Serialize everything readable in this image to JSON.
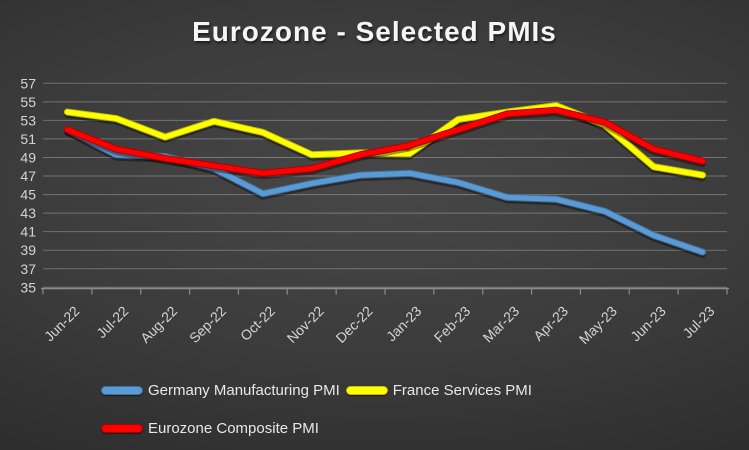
{
  "chart_data": {
    "type": "line",
    "title": "Eurozone - Selected PMIs",
    "categories": [
      "Jun-22",
      "Jul-22",
      "Aug-22",
      "Sep-22",
      "Oct-22",
      "Nov-22",
      "Dec-22",
      "Jan-23",
      "Feb-23",
      "Mar-23",
      "Apr-23",
      "May-23",
      "Jun-23",
      "Jul-23"
    ],
    "series": [
      {
        "name": "Germany Manufacturing PMI",
        "color": "#5B9BD5",
        "edge_color": "#41719C",
        "values": [
          52.0,
          49.3,
          49.1,
          47.8,
          45.1,
          46.2,
          47.1,
          47.3,
          46.3,
          44.7,
          44.5,
          43.2,
          40.6,
          38.8
        ]
      },
      {
        "name": "France Services PMI",
        "color": "#FFFF00",
        "edge_color": "#BFBF00",
        "values": [
          53.9,
          53.2,
          51.2,
          52.9,
          51.7,
          49.3,
          49.5,
          49.4,
          53.1,
          53.9,
          54.6,
          52.5,
          48.0,
          47.1
        ]
      },
      {
        "name": "Eurozone Composite PMI",
        "color": "#FF0000",
        "edge_color": "#B00000",
        "values": [
          52.0,
          49.9,
          48.9,
          48.1,
          47.3,
          47.8,
          49.3,
          50.3,
          52.0,
          53.7,
          54.1,
          52.8,
          49.9,
          48.6
        ]
      }
    ],
    "xlabel": "",
    "ylabel": "",
    "ylim": [
      35,
      57
    ],
    "ytick_step": 2,
    "ytick_labels": [
      "35",
      "37",
      "39",
      "41",
      "43",
      "45",
      "47",
      "49",
      "51",
      "53",
      "55",
      "57"
    ],
    "grid": true,
    "legend_position": "bottom",
    "axis_text_color": "#d4d4d4",
    "gridline_color": "rgba(255,255,255,0.28)",
    "axis_line_color": "#8c8c8c",
    "background_center": "#474747",
    "background_edge": "#262626"
  }
}
